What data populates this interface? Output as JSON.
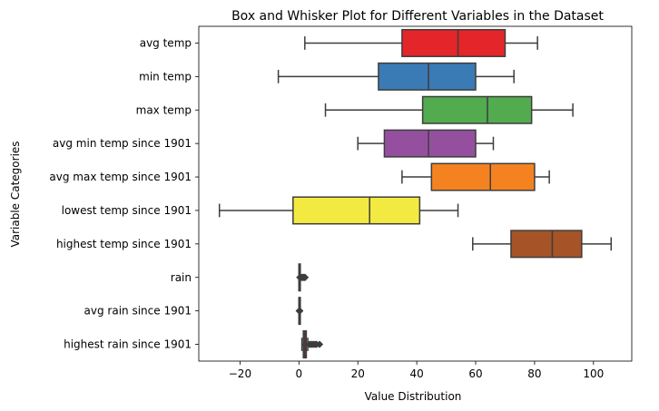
{
  "chart_data": {
    "type": "box",
    "orientation": "horizontal",
    "title": "Box and Whisker Plot for Different Variables in the Dataset",
    "xlabel": "Value Distribution",
    "ylabel": "Variable Categories",
    "xlim": [
      -34,
      113
    ],
    "xticks": [
      -20,
      0,
      20,
      40,
      60,
      80,
      100
    ],
    "xtick_labels": [
      "−20",
      "0",
      "20",
      "40",
      "60",
      "80",
      "100"
    ],
    "grid": false,
    "categories": [
      "avg temp",
      "min temp",
      "max temp",
      "avg min temp since 1901",
      "avg max temp since 1901",
      "lowest temp since 1901",
      "highest temp since 1901",
      "rain",
      "avg rain since 1901",
      "highest rain since 1901"
    ],
    "series": [
      {
        "category": "avg temp",
        "min": 2,
        "q1": 35,
        "median": 54,
        "q3": 70,
        "max": 81,
        "outliers": [],
        "color": "#e42529"
      },
      {
        "category": "min temp",
        "min": -7,
        "q1": 27,
        "median": 44,
        "q3": 60,
        "max": 73,
        "outliers": [],
        "color": "#3a7bb5"
      },
      {
        "category": "max temp",
        "min": 9,
        "q1": 42,
        "median": 64,
        "q3": 79,
        "max": 93,
        "outliers": [],
        "color": "#52ab4f"
      },
      {
        "category": "avg min temp since 1901",
        "min": 20,
        "q1": 29,
        "median": 44,
        "q3": 60,
        "max": 66,
        "outliers": [],
        "color": "#94509f"
      },
      {
        "category": "avg max temp since 1901",
        "min": 35,
        "q1": 45,
        "median": 65,
        "q3": 80,
        "max": 85,
        "outliers": [],
        "color": "#f58220"
      },
      {
        "category": "lowest temp since 1901",
        "min": -27,
        "q1": -2,
        "median": 24,
        "q3": 41,
        "max": 54,
        "outliers": [],
        "color": "#f3ea41"
      },
      {
        "category": "highest temp since 1901",
        "min": 59,
        "q1": 72,
        "median": 86,
        "q3": 96,
        "max": 106,
        "outliers": [],
        "color": "#a65328"
      },
      {
        "category": "rain",
        "min": 0,
        "q1": 0,
        "median": 0,
        "q3": 0,
        "max": 0,
        "outliers": [
          0.3,
          0.6,
          0.9,
          1.2,
          1.5,
          1.8,
          2.1
        ],
        "color": "#f47ebd"
      },
      {
        "category": "avg rain since 1901",
        "min": 0,
        "q1": 0,
        "median": 0,
        "q3": 0,
        "max": 0,
        "outliers": [
          0.1,
          0.2,
          0.3
        ],
        "color": "#999999"
      },
      {
        "category": "highest rain since 1901",
        "min": 1,
        "q1": 1.5,
        "median": 2,
        "q3": 2.5,
        "max": 3,
        "outliers": [
          3.5,
          4,
          4.5,
          5,
          5.5,
          6,
          7
        ],
        "color": "#e42529"
      }
    ]
  }
}
